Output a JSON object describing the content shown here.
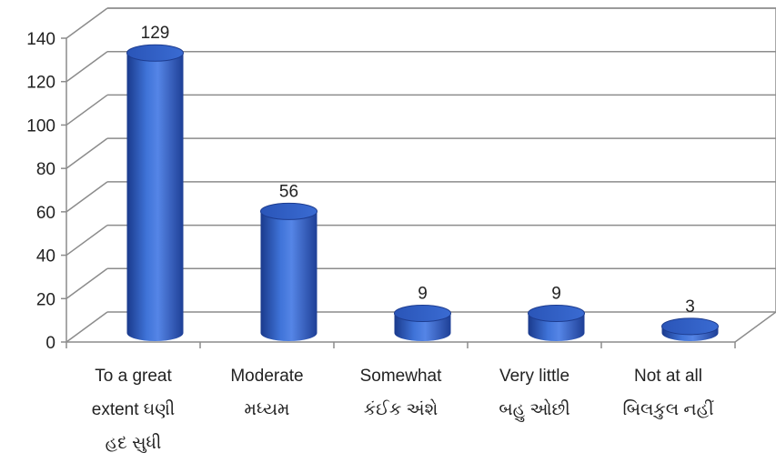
{
  "chart_data": {
    "type": "bar",
    "style": "3d-cylinder",
    "categories": [
      "To a great extent ઘણી હદ સુધી",
      "Moderate મધ્યમ",
      "Somewhat કંઈક અંશે",
      "Very little બહુ ઓછી",
      "Not at all બિલકુલ નહીં"
    ],
    "category_lines": [
      [
        "To a great",
        "extent ઘણી",
        "હદ સુધી"
      ],
      [
        "Moderate",
        "મધ્યમ"
      ],
      [
        "Somewhat",
        "કંઈક અંશે"
      ],
      [
        "Very little",
        "બહુ ઓછી"
      ],
      [
        "Not at all",
        "બિલકુલ નહીં"
      ]
    ],
    "values": [
      129,
      56,
      9,
      9,
      3
    ],
    "data_labels": [
      "129",
      "56",
      "9",
      "9",
      "3"
    ],
    "y_ticks": [
      "0",
      "20",
      "40",
      "60",
      "80",
      "100",
      "120",
      "140"
    ],
    "ylim": [
      0,
      140
    ],
    "grid": true,
    "legend": "none",
    "title": "",
    "xlabel": "",
    "ylabel": "",
    "bar_color": "#3366cc"
  }
}
